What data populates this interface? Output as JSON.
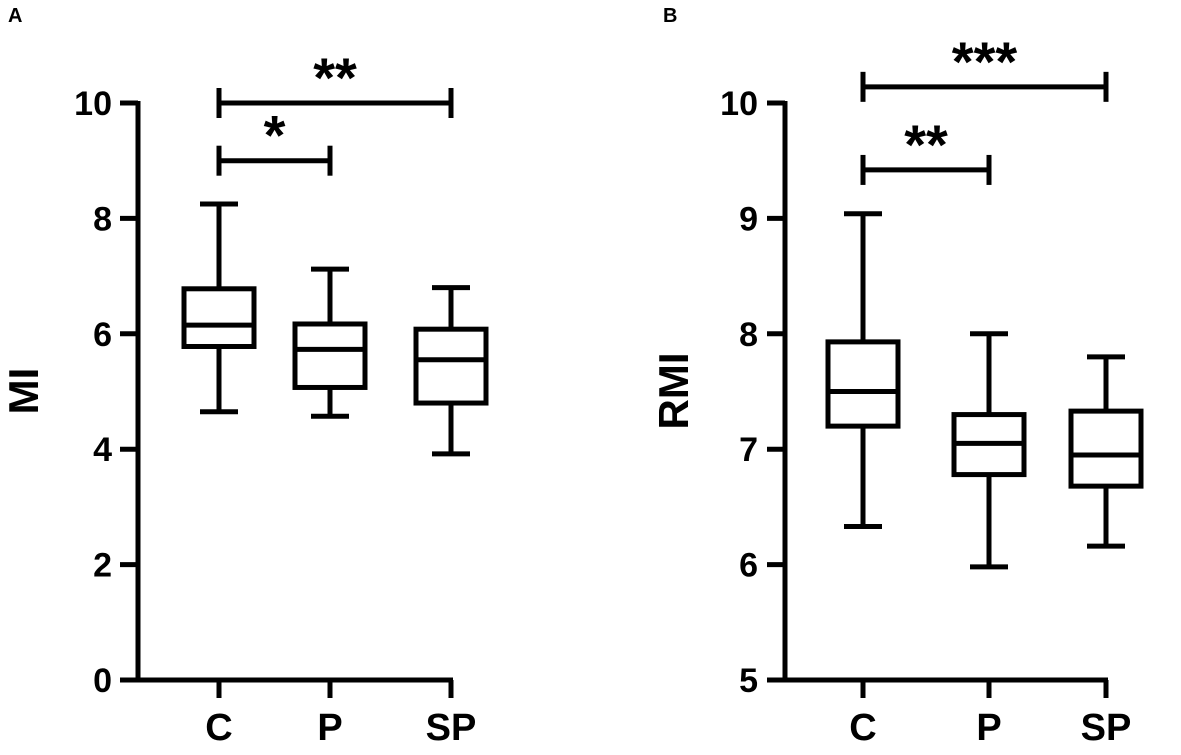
{
  "chart_data": [
    {
      "panel": "A",
      "type": "boxplot",
      "ylabel": "MI",
      "xlabel": "",
      "ylim": [
        0,
        10
      ],
      "yticks": [
        "0",
        "2",
        "4",
        "6",
        "8",
        "10"
      ],
      "categories": [
        "C",
        "P",
        "SP"
      ],
      "boxes": [
        {
          "category": "C",
          "min": 4.65,
          "q1": 5.78,
          "median": 6.15,
          "q3": 6.78,
          "max": 8.25
        },
        {
          "category": "P",
          "min": 4.57,
          "q1": 5.07,
          "median": 5.73,
          "q3": 6.17,
          "max": 7.12
        },
        {
          "category": "SP",
          "min": 3.92,
          "q1": 4.8,
          "median": 5.55,
          "q3": 6.08,
          "max": 6.8
        }
      ],
      "significance": [
        {
          "from": "C",
          "to": "P",
          "y": 9.0,
          "label": "*"
        },
        {
          "from": "C",
          "to": "SP",
          "y": 10.0,
          "label": "**"
        }
      ]
    },
    {
      "panel": "B",
      "type": "boxplot",
      "ylabel": "RMI",
      "xlabel": "",
      "ylim": [
        5,
        10
      ],
      "yticks": [
        "5",
        "6",
        "7",
        "8",
        "9",
        "10"
      ],
      "categories": [
        "C",
        "P",
        "SP"
      ],
      "boxes": [
        {
          "category": "C",
          "min": 6.33,
          "q1": 7.2,
          "median": 7.5,
          "q3": 7.93,
          "max": 9.04
        },
        {
          "category": "P",
          "min": 5.98,
          "q1": 6.78,
          "median": 7.05,
          "q3": 7.3,
          "max": 8.0
        },
        {
          "category": "SP",
          "min": 6.16,
          "q1": 6.68,
          "median": 6.95,
          "q3": 7.33,
          "max": 7.8
        }
      ],
      "significance": [
        {
          "from": "C",
          "to": "P",
          "y": 9.42,
          "label": "**"
        },
        {
          "from": "C",
          "to": "SP",
          "y": 10.14,
          "label": "***"
        }
      ]
    }
  ]
}
